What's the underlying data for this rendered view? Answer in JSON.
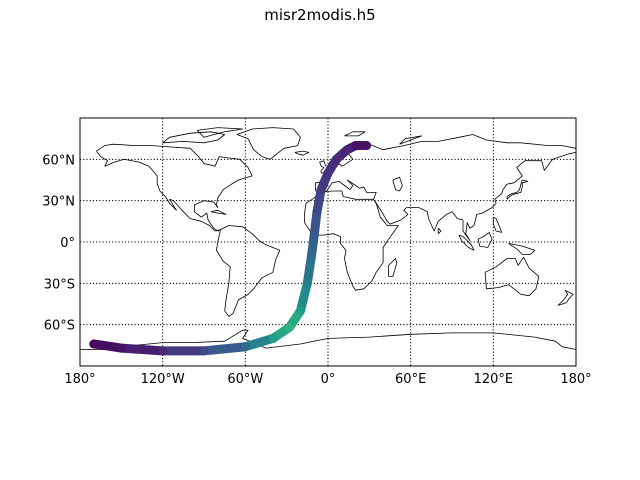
{
  "figure": {
    "title": "misr2modis.h5"
  },
  "chart_data": {
    "type": "map",
    "projection": "equirectangular",
    "lon_range": [
      -180,
      180
    ],
    "lat_range": [
      -90,
      90
    ],
    "grid": true,
    "x_ticks": [
      {
        "value": -180,
        "label": "180°"
      },
      {
        "value": -120,
        "label": "120°W"
      },
      {
        "value": -60,
        "label": "60°W"
      },
      {
        "value": 0,
        "label": "0°"
      },
      {
        "value": 60,
        "label": "60°E"
      },
      {
        "value": 120,
        "label": "120°E"
      },
      {
        "value": 180,
        "label": "180°"
      }
    ],
    "y_ticks": [
      {
        "value": 60,
        "label": "60°N"
      },
      {
        "value": 30,
        "label": "30°N"
      },
      {
        "value": 0,
        "label": "0°"
      },
      {
        "value": -30,
        "label": "30°S"
      },
      {
        "value": -60,
        "label": "60°S"
      }
    ],
    "swath": {
      "colormap": "viridis",
      "track": [
        {
          "lon": 28,
          "lat": 70,
          "c": 0.05
        },
        {
          "lon": 20,
          "lat": 70,
          "c": 0.05
        },
        {
          "lon": 14,
          "lat": 67,
          "c": 0.1
        },
        {
          "lon": 6,
          "lat": 60,
          "c": 0.12
        },
        {
          "lon": 0,
          "lat": 50,
          "c": 0.15
        },
        {
          "lon": -5,
          "lat": 38,
          "c": 0.18
        },
        {
          "lon": -8,
          "lat": 22,
          "c": 0.22
        },
        {
          "lon": -10,
          "lat": 5,
          "c": 0.28
        },
        {
          "lon": -12,
          "lat": -10,
          "c": 0.35
        },
        {
          "lon": -15,
          "lat": -30,
          "c": 0.42
        },
        {
          "lon": -20,
          "lat": -50,
          "c": 0.55
        },
        {
          "lon": -28,
          "lat": -62,
          "c": 0.65
        },
        {
          "lon": -40,
          "lat": -70,
          "c": 0.55
        },
        {
          "lon": -60,
          "lat": -76,
          "c": 0.35
        },
        {
          "lon": -90,
          "lat": -79,
          "c": 0.22
        },
        {
          "lon": -120,
          "lat": -79,
          "c": 0.12
        },
        {
          "lon": -150,
          "lat": -77,
          "c": 0.05
        },
        {
          "lon": -170,
          "lat": -74,
          "c": 0.02
        }
      ]
    }
  }
}
